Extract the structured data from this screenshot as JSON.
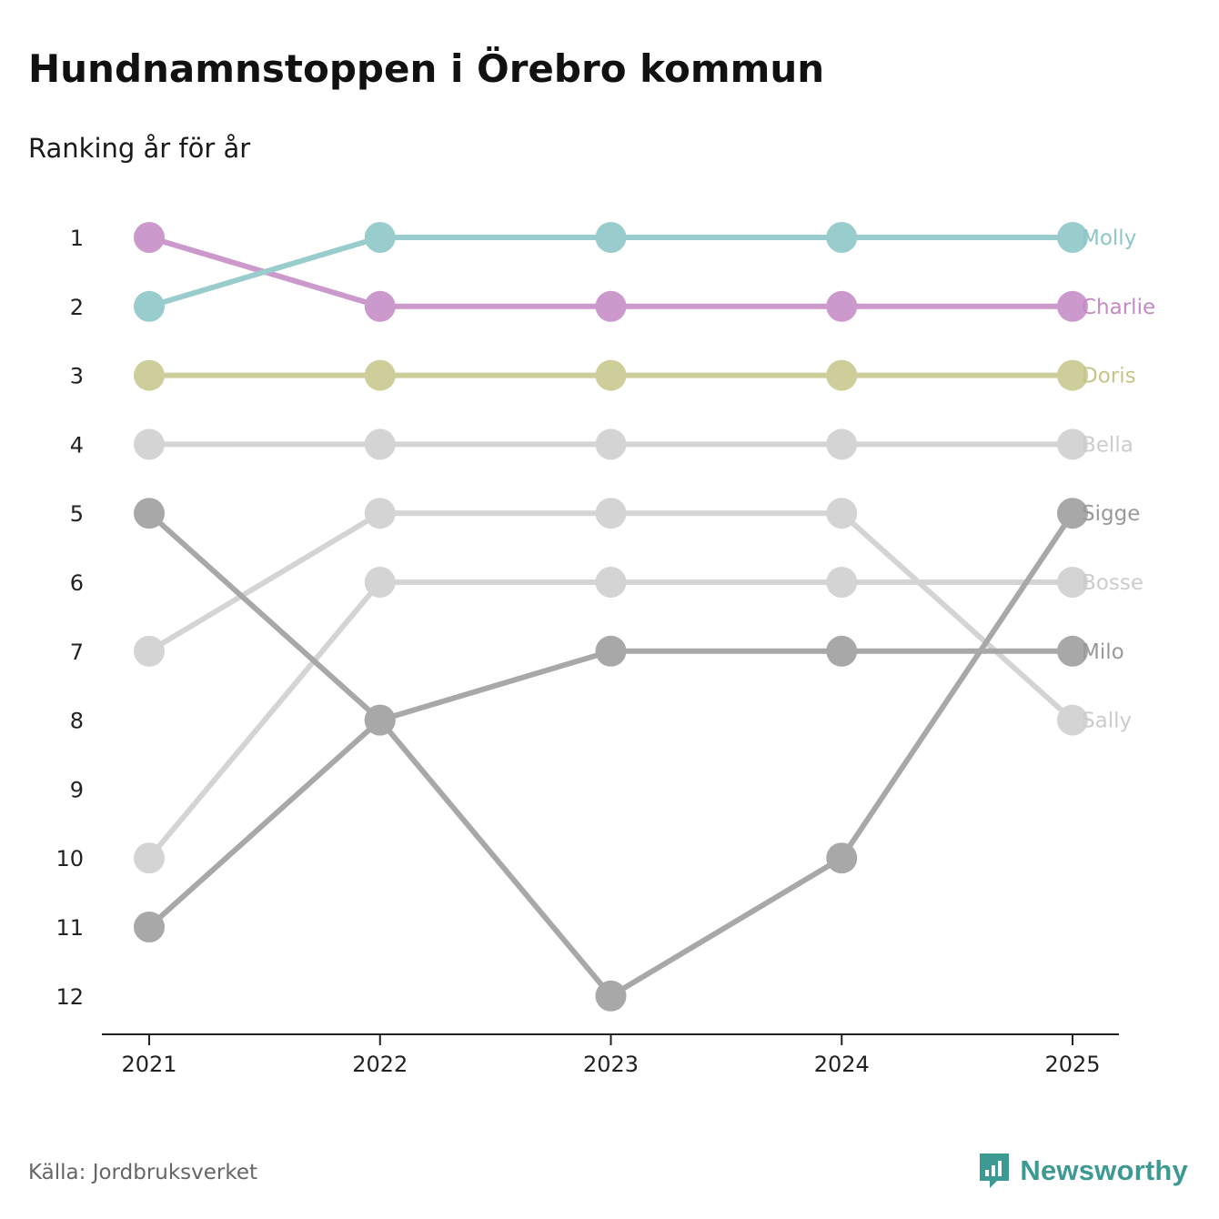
{
  "header": {
    "title": "Hundnamnstoppen i Örebro kommun",
    "subtitle": "Ranking år för år"
  },
  "footer": {
    "source": "Källa: Jordbruksverket",
    "brand": "Newsworthy",
    "brand_icon": "newsworthy-logo-icon",
    "brand_color": "#3d9a93"
  },
  "chart_data": {
    "type": "line",
    "subtype": "bump",
    "title": "Hundnamnstoppen i Örebro kommun",
    "subtitle": "Ranking år för år",
    "x": [
      "2021",
      "2022",
      "2023",
      "2024",
      "2025"
    ],
    "y_ticks": [
      "1",
      "2",
      "3",
      "4",
      "5",
      "6",
      "7",
      "8",
      "9",
      "10",
      "11",
      "12"
    ],
    "ylim": [
      1,
      12
    ],
    "y_inverted": true,
    "xlabel": "",
    "ylabel": "",
    "series": [
      {
        "name": "Bella",
        "values": [
          4,
          4,
          4,
          4,
          4
        ],
        "color": "#d4d4d4",
        "label_color": "#cccccc"
      },
      {
        "name": "Bosse",
        "values": [
          10,
          6,
          6,
          6,
          6
        ],
        "color": "#d4d4d4",
        "label_color": "#cccccc"
      },
      {
        "name": "Sally",
        "values": [
          7,
          5,
          5,
          5,
          8
        ],
        "color": "#d4d4d4",
        "label_color": "#cccccc"
      },
      {
        "name": "Milo",
        "values": [
          11,
          8,
          7,
          7,
          7
        ],
        "color": "#a8a8a8",
        "label_color": "#999999"
      },
      {
        "name": "Sigge",
        "values": [
          5,
          8,
          12,
          10,
          5
        ],
        "color": "#a8a8a8",
        "label_color": "#999999"
      },
      {
        "name": "Doris",
        "values": [
          3,
          3,
          3,
          3,
          3
        ],
        "color": "#cece9a",
        "label_color": "#c5c58a"
      },
      {
        "name": "Charlie",
        "values": [
          1,
          2,
          2,
          2,
          2
        ],
        "color": "#cc99cc",
        "label_color": "#c48ac4"
      },
      {
        "name": "Molly",
        "values": [
          2,
          1,
          1,
          1,
          1
        ],
        "color": "#99cccc",
        "label_color": "#8cc6c6"
      }
    ]
  }
}
